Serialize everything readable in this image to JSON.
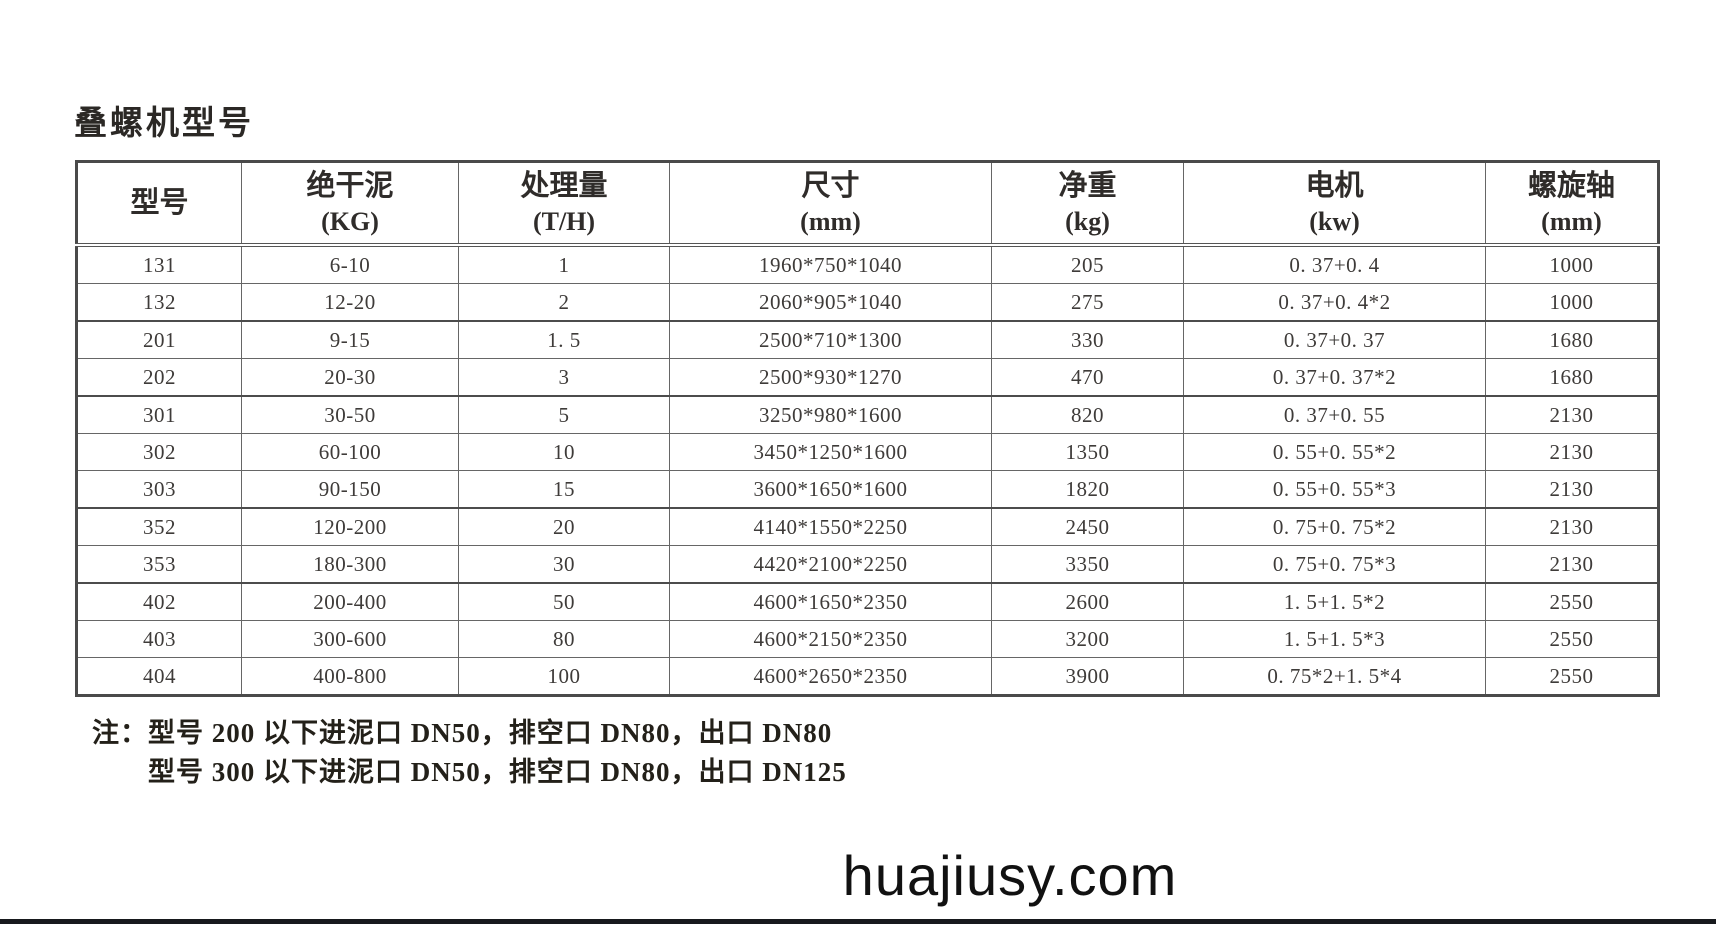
{
  "title": "叠螺机型号",
  "table": {
    "columns": [
      {
        "name": "型号",
        "unit": ""
      },
      {
        "name": "绝干泥",
        "unit": "(KG)"
      },
      {
        "name": "处理量",
        "unit": "(T/H)"
      },
      {
        "name": "尺寸",
        "unit": "(mm)"
      },
      {
        "name": "净重",
        "unit": "(kg)"
      },
      {
        "name": "电机",
        "unit": "(kw)"
      },
      {
        "name": "螺旋轴",
        "unit": "(mm)"
      }
    ],
    "rows": [
      [
        "131",
        "6-10",
        "1",
        "1960*750*1040",
        "205",
        "0. 37+0. 4",
        "1000"
      ],
      [
        "132",
        "12-20",
        "2",
        "2060*905*1040",
        "275",
        "0. 37+0. 4*2",
        "1000"
      ],
      [
        "201",
        "9-15",
        "1. 5",
        "2500*710*1300",
        "330",
        "0. 37+0. 37",
        "1680"
      ],
      [
        "202",
        "20-30",
        "3",
        "2500*930*1270",
        "470",
        "0. 37+0. 37*2",
        "1680"
      ],
      [
        "301",
        "30-50",
        "5",
        "3250*980*1600",
        "820",
        "0. 37+0. 55",
        "2130"
      ],
      [
        "302",
        "60-100",
        "10",
        "3450*1250*1600",
        "1350",
        "0. 55+0. 55*2",
        "2130"
      ],
      [
        "303",
        "90-150",
        "15",
        "3600*1650*1600",
        "1820",
        "0. 55+0. 55*3",
        "2130"
      ],
      [
        "352",
        "120-200",
        "20",
        "4140*1550*2250",
        "2450",
        "0. 75+0. 75*2",
        "2130"
      ],
      [
        "353",
        "180-300",
        "30",
        "4420*2100*2250",
        "3350",
        "0. 75+0. 75*3",
        "2130"
      ],
      [
        "402",
        "200-400",
        "50",
        "4600*1650*2350",
        "2600",
        "1. 5+1. 5*2",
        "2550"
      ],
      [
        "403",
        "300-600",
        "80",
        "4600*2150*2350",
        "3200",
        "1. 5+1. 5*3",
        "2550"
      ],
      [
        "404",
        "400-800",
        "100",
        "4600*2650*2350",
        "3900",
        "0. 75*2+1. 5*4",
        "2550"
      ]
    ]
  },
  "notes": {
    "line1": "注：型号 200 以下进泥口 DN50，排空口 DN80，出口 DN80",
    "line2": "型号 300 以下进泥口 DN50，排空口 DN80，出口 DN125"
  },
  "watermark": "huajiusy.com",
  "colors": {
    "border_inner": "#666666",
    "border_outer": "#4a4a4a",
    "text": "#3e3b39",
    "bottom_bar": "#17191d"
  }
}
